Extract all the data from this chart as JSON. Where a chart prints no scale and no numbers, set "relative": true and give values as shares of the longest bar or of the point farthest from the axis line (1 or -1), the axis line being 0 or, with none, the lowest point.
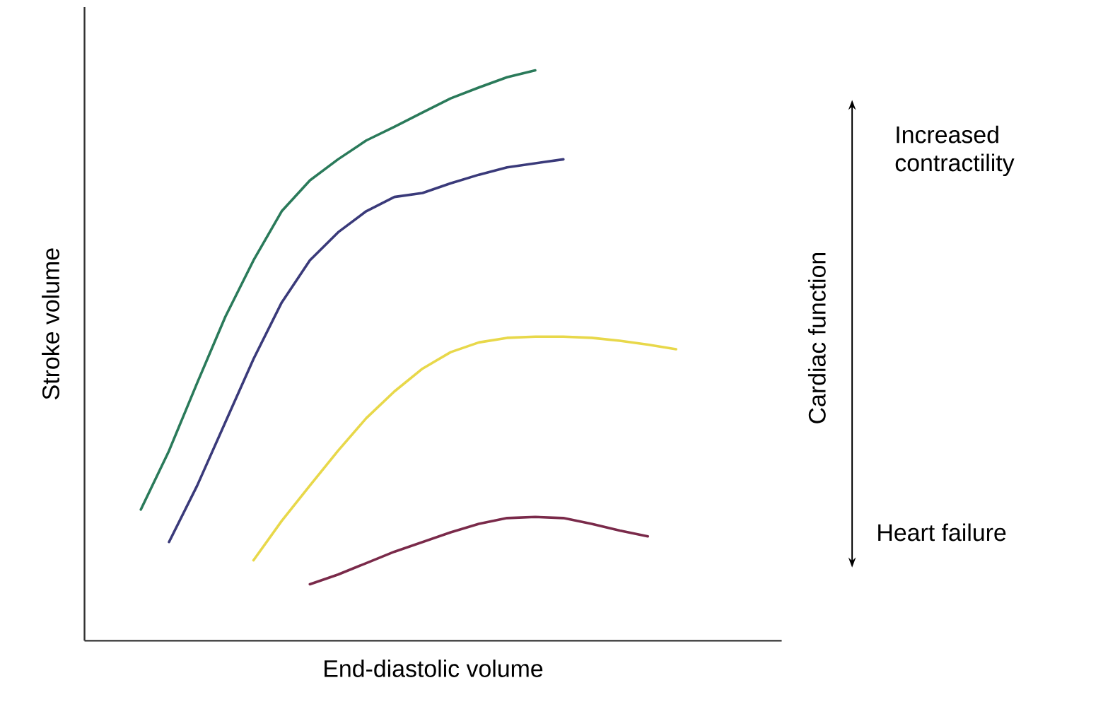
{
  "chart_data": {
    "type": "line",
    "relative": true,
    "xlabel": "End-diastolic volume",
    "ylabel": "Stroke volume",
    "categories": [
      null,
      null,
      null,
      null,
      null,
      null,
      null,
      null,
      null,
      null,
      null,
      null,
      null,
      null,
      null,
      null,
      null,
      null,
      null,
      null,
      null
    ],
    "series": [
      {
        "color": "#2a7a5a",
        "values": [
          0.23,
          0.333,
          0.452,
          0.568,
          0.667,
          0.753,
          0.807,
          0.844,
          0.877,
          0.901,
          0.926,
          0.951,
          0.97,
          0.988,
          1,
          null,
          null,
          null,
          null,
          null,
          null
        ]
      },
      {
        "color": "#3a3a7a",
        "values": [
          null,
          0.173,
          0.272,
          0.383,
          0.494,
          0.593,
          0.667,
          0.716,
          0.753,
          0.778,
          0.785,
          0.802,
          0.817,
          0.83,
          0.837,
          0.844,
          null,
          null,
          null,
          null,
          null
        ]
      },
      {
        "color": "#e8d84a",
        "values": [
          null,
          null,
          null,
          null,
          0.141,
          0.21,
          0.272,
          0.333,
          0.39,
          0.437,
          0.477,
          0.506,
          0.523,
          0.531,
          0.533,
          0.533,
          0.531,
          0.526,
          0.519,
          0.511,
          null
        ]
      },
      {
        "color": "#7a2a4a",
        "values": [
          null,
          null,
          null,
          null,
          null,
          null,
          0.099,
          0.116,
          0.136,
          0.156,
          0.173,
          0.19,
          0.205,
          0.215,
          0.217,
          0.215,
          0.205,
          0.193,
          0.183,
          null,
          null
        ]
      }
    ],
    "annotations": [
      "Increased contractility",
      "Cardiac function",
      "Heart failure"
    ],
    "marker": "none",
    "line_style": "solid",
    "grid": false
  }
}
